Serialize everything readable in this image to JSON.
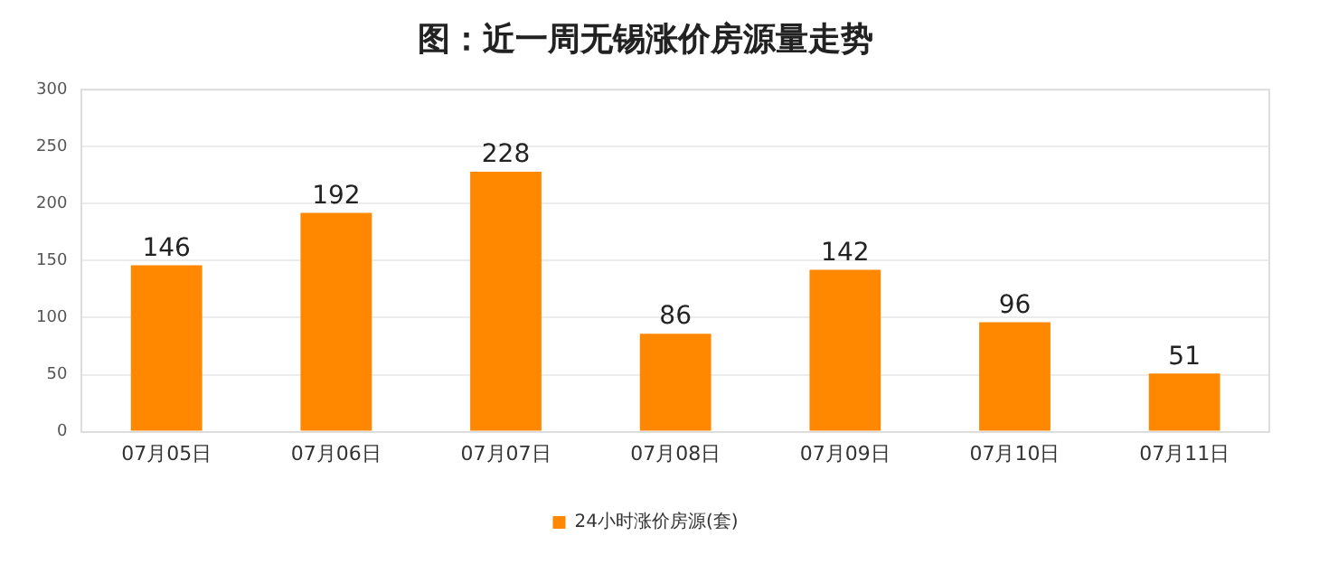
{
  "chart_data": {
    "type": "bar",
    "title": "图：近一周无锡涨价房源量走势",
    "categories": [
      "07月05日",
      "07月06日",
      "07月07日",
      "07月08日",
      "07月09日",
      "07月10日",
      "07月11日"
    ],
    "series": [
      {
        "name": "24小时涨价房源(套)",
        "color": "#ff8800",
        "values": [
          146,
          192,
          228,
          86,
          142,
          96,
          51
        ]
      }
    ],
    "ylim": [
      0,
      300
    ],
    "yticks": [
      0,
      50,
      100,
      150,
      200,
      250,
      300
    ],
    "grid": "y",
    "legend": "bottom",
    "data_labels": true
  }
}
